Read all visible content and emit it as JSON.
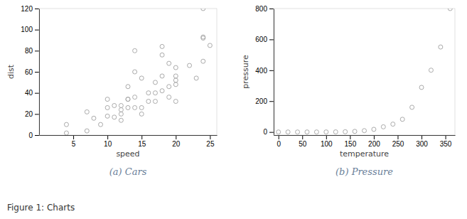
{
  "title": "Figure 1: Charts",
  "chart_data": [
    {
      "type": "scatter",
      "title": "(a) Cars",
      "x_label": "speed",
      "y_label": "dist",
      "x": [
        4,
        4,
        7,
        7,
        8,
        9,
        10,
        10,
        10,
        11,
        11,
        12,
        12,
        12,
        12,
        13,
        13,
        13,
        13,
        14,
        14,
        14,
        14,
        15,
        15,
        15,
        16,
        16,
        17,
        17,
        17,
        18,
        18,
        18,
        18,
        19,
        19,
        19,
        20,
        20,
        20,
        20,
        20,
        22,
        23,
        24,
        24,
        24,
        24,
        25
      ],
      "values": [
        2,
        10,
        4,
        22,
        16,
        10,
        18,
        26,
        34,
        17,
        28,
        14,
        20,
        24,
        28,
        26,
        34,
        34,
        46,
        26,
        36,
        60,
        80,
        20,
        26,
        54,
        32,
        40,
        32,
        40,
        50,
        42,
        56,
        76,
        84,
        36,
        46,
        68,
        32,
        48,
        52,
        56,
        64,
        66,
        54,
        70,
        92,
        93,
        120,
        85
      ],
      "xlim": [
        0,
        26
      ],
      "ylim": [
        0,
        120
      ],
      "xticks": [
        5,
        10,
        15,
        20,
        25
      ],
      "yticks": [
        0,
        20,
        40,
        60,
        80,
        100,
        120
      ],
      "color": "#aaaaaa",
      "marker": "circle",
      "grid": false
    },
    {
      "type": "scatter",
      "title": "(b) Pressure",
      "x_label": "temperature",
      "y_label": "pressure",
      "x": [
        0,
        20,
        40,
        60,
        80,
        100,
        120,
        140,
        160,
        180,
        200,
        220,
        240,
        260,
        280,
        300,
        320,
        340,
        360
      ],
      "values": [
        0.0002,
        0.0012,
        0.006,
        0.03,
        0.09,
        0.27,
        0.72,
        1.7,
        4.02,
        8.8,
        17.3,
        33.6,
        51.1,
        82.37,
        160.1,
        289.1,
        400.6,
        550.8,
        800.0
      ],
      "xlim": [
        -10,
        370
      ],
      "ylim": [
        -20,
        800
      ],
      "xticks": [
        0,
        50,
        100,
        150,
        200,
        250,
        300,
        350
      ],
      "yticks": [
        0,
        200,
        400,
        600,
        800
      ],
      "color": "#aaaaaa",
      "marker": "circle",
      "grid": false
    }
  ]
}
